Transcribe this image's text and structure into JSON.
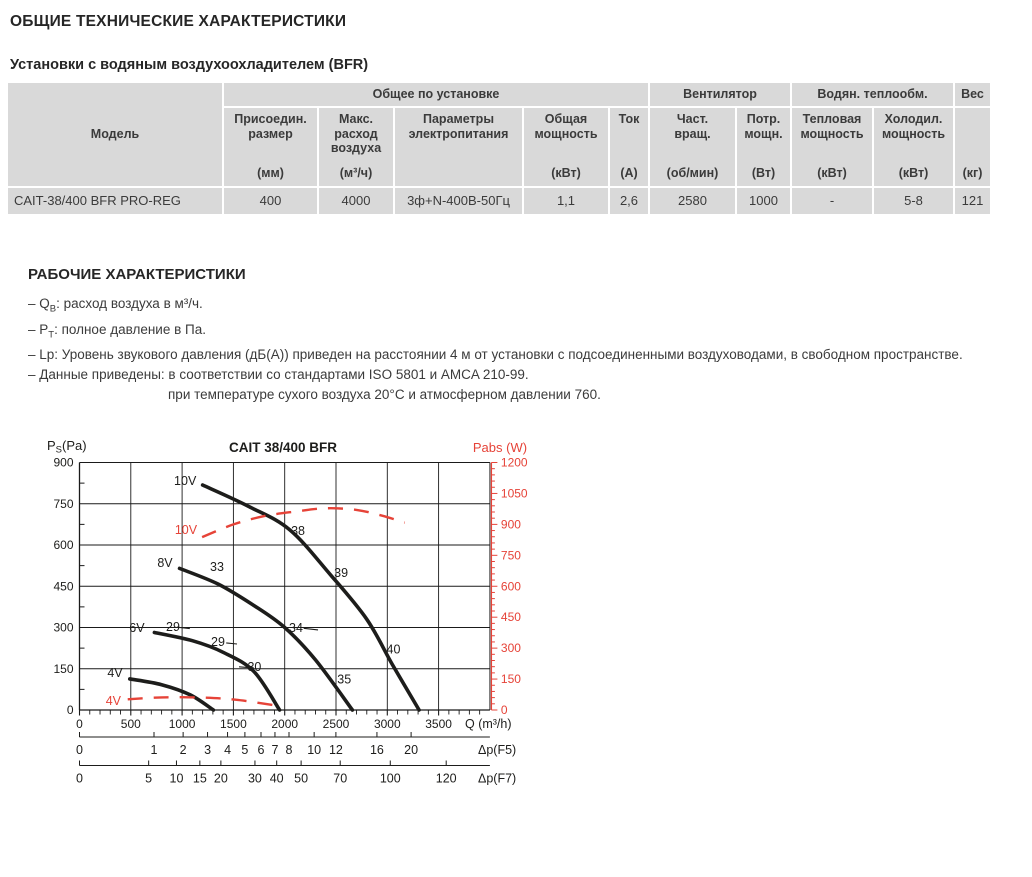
{
  "page": {
    "title": "ОБЩИЕ ТЕХНИЧЕСКИЕ ХАРАКТЕРИСТИКИ",
    "subtitle": "Установки с водяным воздухоохладителем (BFR)"
  },
  "table": {
    "model_header": "Модель",
    "groups": [
      {
        "label": "Общее по установке",
        "span": 5
      },
      {
        "label": "Вентилятор",
        "span": 2
      },
      {
        "label": "Водян. теплообм.",
        "span": 2
      },
      {
        "label": "Вес",
        "span": 1
      }
    ],
    "columns": [
      {
        "header": "Присоедин.\nразмер",
        "unit": "(мм)"
      },
      {
        "header": "Макс.\nрасход\nвоздуха",
        "unit": "(м³/ч)"
      },
      {
        "header": "Параметры\nэлектропитания",
        "unit": ""
      },
      {
        "header": "Общая\nмощность",
        "unit": "(кВт)"
      },
      {
        "header": "Ток",
        "unit": "(А)"
      },
      {
        "header": "Част.\nвращ.",
        "unit": "(об/мин)"
      },
      {
        "header": "Потр.\nмощн.",
        "unit": "(Вт)"
      },
      {
        "header": "Тепловая\nмощность",
        "unit": "(кВт)"
      },
      {
        "header": "Холодил.\nмощность",
        "unit": "(кВт)"
      },
      {
        "header": "",
        "unit": "(кг)"
      }
    ],
    "rows": [
      {
        "model": "CAIT-38/400 BFR PRO-REG",
        "values": [
          "400",
          "4000",
          "3ф+N-400В-50Гц",
          "1,1",
          "2,6",
          "2580",
          "1000",
          "-",
          "5-8",
          "121"
        ]
      }
    ]
  },
  "working": {
    "title": "РАБОЧИЕ ХАРАКТЕРИСТИКИ",
    "bullets": [
      {
        "seg": [
          {
            "t": "– Q"
          },
          {
            "t": "В",
            "s": "sub"
          },
          {
            "t": ": расход воздуха в м³/ч."
          }
        ]
      },
      {
        "seg": [
          {
            "t": "– P"
          },
          {
            "t": "Т",
            "s": "sub"
          },
          {
            "t": ": полное давление в Па."
          }
        ]
      },
      {
        "seg": [
          {
            "t": "– Lp: Уровень звукового давления (дБ(А)) приведен на расстоянии 4 м от установки с подсоединенными воздуховодами, в свободном пространстве."
          }
        ]
      },
      {
        "seg": [
          {
            "t": "– Данные приведены:  в соответствии со стандартами ISO 5801 и AMCA 210-99."
          }
        ]
      },
      {
        "indent": 140,
        "seg": [
          {
            "t": "при температуре сухого воздуха 20°С и атмосферном давлении 760."
          }
        ]
      }
    ]
  },
  "chart_data": {
    "type": "line",
    "title": "CAIT 38/400 BFR",
    "colors": {
      "black": "#1d1d1b",
      "red": "#e64338",
      "grid": "#1a1a1a"
    },
    "left_axis": {
      "label_main": "P",
      "label_sub": "S",
      "label_rest": "(Pa)",
      "min": 0,
      "max": 900,
      "major": 150,
      "minor": 75,
      "ticks": [
        0,
        150,
        300,
        450,
        600,
        750,
        900
      ]
    },
    "right_axis": {
      "label": "Pabs (W)",
      "min": 0,
      "max": 1200,
      "major": 150,
      "minor": 30,
      "ticks": [
        0,
        150,
        300,
        450,
        600,
        750,
        900,
        1050,
        1200
      ]
    },
    "x_axis": {
      "label": "Q (m³/h)",
      "min": 0,
      "max": 4000,
      "major": 500,
      "minor": 100,
      "last_labeled": 3500,
      "ticks": [
        0,
        500,
        1000,
        1500,
        2000,
        2500,
        3000,
        3500
      ]
    },
    "pressure_curves": [
      {
        "name": "10V",
        "points": [
          [
            1200,
            818
          ],
          [
            1650,
            740
          ],
          [
            2050,
            655
          ],
          [
            2450,
            490
          ],
          [
            2800,
            330
          ],
          [
            3050,
            165
          ],
          [
            3310,
            0
          ]
        ]
      },
      {
        "name": "8V",
        "points": [
          [
            975,
            515
          ],
          [
            1350,
            458
          ],
          [
            1700,
            380
          ],
          [
            2000,
            300
          ],
          [
            2300,
            182
          ],
          [
            2660,
            0
          ]
        ]
      },
      {
        "name": "6V",
        "points": [
          [
            730,
            282
          ],
          [
            1100,
            252
          ],
          [
            1400,
            210
          ],
          [
            1700,
            140
          ],
          [
            1950,
            0
          ]
        ]
      },
      {
        "name": "4V",
        "points": [
          [
            490,
            113
          ],
          [
            800,
            92
          ],
          [
            1080,
            55
          ],
          [
            1305,
            0
          ]
        ]
      }
    ],
    "power_curves": [
      {
        "name": "10V",
        "points": [
          [
            1195,
            838
          ],
          [
            1500,
            900
          ],
          [
            1800,
            940
          ],
          [
            2100,
            962
          ],
          [
            2400,
            978
          ],
          [
            2700,
            970
          ],
          [
            2950,
            942
          ],
          [
            3170,
            908
          ]
        ]
      },
      {
        "name": "4V",
        "points": [
          [
            470,
            52
          ],
          [
            800,
            61
          ],
          [
            1200,
            60
          ],
          [
            1520,
            50
          ],
          [
            1890,
            24
          ]
        ]
      }
    ],
    "curve_labels": [
      {
        "text": "10V",
        "q": 1030,
        "p": 834,
        "color": "black"
      },
      {
        "text": "38",
        "q": 2130,
        "p": 653,
        "color": "black"
      },
      {
        "text": "39",
        "q": 2550,
        "p": 500,
        "color": "black"
      },
      {
        "text": "40",
        "q": 3060,
        "p": 222,
        "color": "black"
      },
      {
        "text": "8V",
        "q": 833,
        "p": 536,
        "color": "black"
      },
      {
        "text": "33",
        "q": 1340,
        "p": 522,
        "color": "black"
      },
      {
        "text": "34",
        "q": 2110,
        "p": 300,
        "color": "black"
      },
      {
        "text": "35",
        "q": 2580,
        "p": 113,
        "color": "black"
      },
      {
        "text": "6V",
        "q": 560,
        "p": 300,
        "color": "black"
      },
      {
        "text": "29",
        "q": 911,
        "p": 304,
        "color": "black"
      },
      {
        "text": "29",
        "q": 1350,
        "p": 249,
        "color": "black"
      },
      {
        "text": "30",
        "q": 1705,
        "p": 158,
        "color": "black"
      },
      {
        "text": "4V",
        "q": 346,
        "p": 136,
        "color": "black"
      },
      {
        "text": "10V",
        "q": 1038,
        "p": 656,
        "color": "red"
      },
      {
        "text": "4V",
        "q": 330,
        "p": 35,
        "color": "red"
      }
    ],
    "leader_lines": [
      [
        975,
        300,
        1075,
        296
      ],
      [
        1430,
        244,
        1535,
        240
      ],
      [
        1555,
        157,
        1660,
        154
      ],
      [
        2185,
        297,
        2325,
        291
      ]
    ],
    "sub_scales": [
      {
        "label": "Δp(F5)",
        "ticks": [
          [
            "0",
            0
          ],
          [
            "1",
            726
          ],
          [
            "2",
            1010
          ],
          [
            "3",
            1248
          ],
          [
            "4",
            1443
          ],
          [
            "5",
            1612
          ],
          [
            "6",
            1769
          ],
          [
            "7",
            1905
          ],
          [
            "8",
            2042
          ],
          [
            "10",
            2287
          ],
          [
            "12",
            2499
          ],
          [
            "16",
            2899
          ],
          [
            "20",
            3232
          ]
        ]
      },
      {
        "label": "Δp(F7)",
        "ticks": [
          [
            "0",
            0
          ],
          [
            "5",
            674
          ],
          [
            "10",
            945
          ],
          [
            "15",
            1173
          ],
          [
            "20",
            1378
          ],
          [
            "30",
            1710
          ],
          [
            "40",
            1922
          ],
          [
            "50",
            2160
          ],
          [
            "70",
            2541
          ],
          [
            "100",
            3029
          ],
          [
            "120",
            3574
          ]
        ]
      }
    ]
  }
}
